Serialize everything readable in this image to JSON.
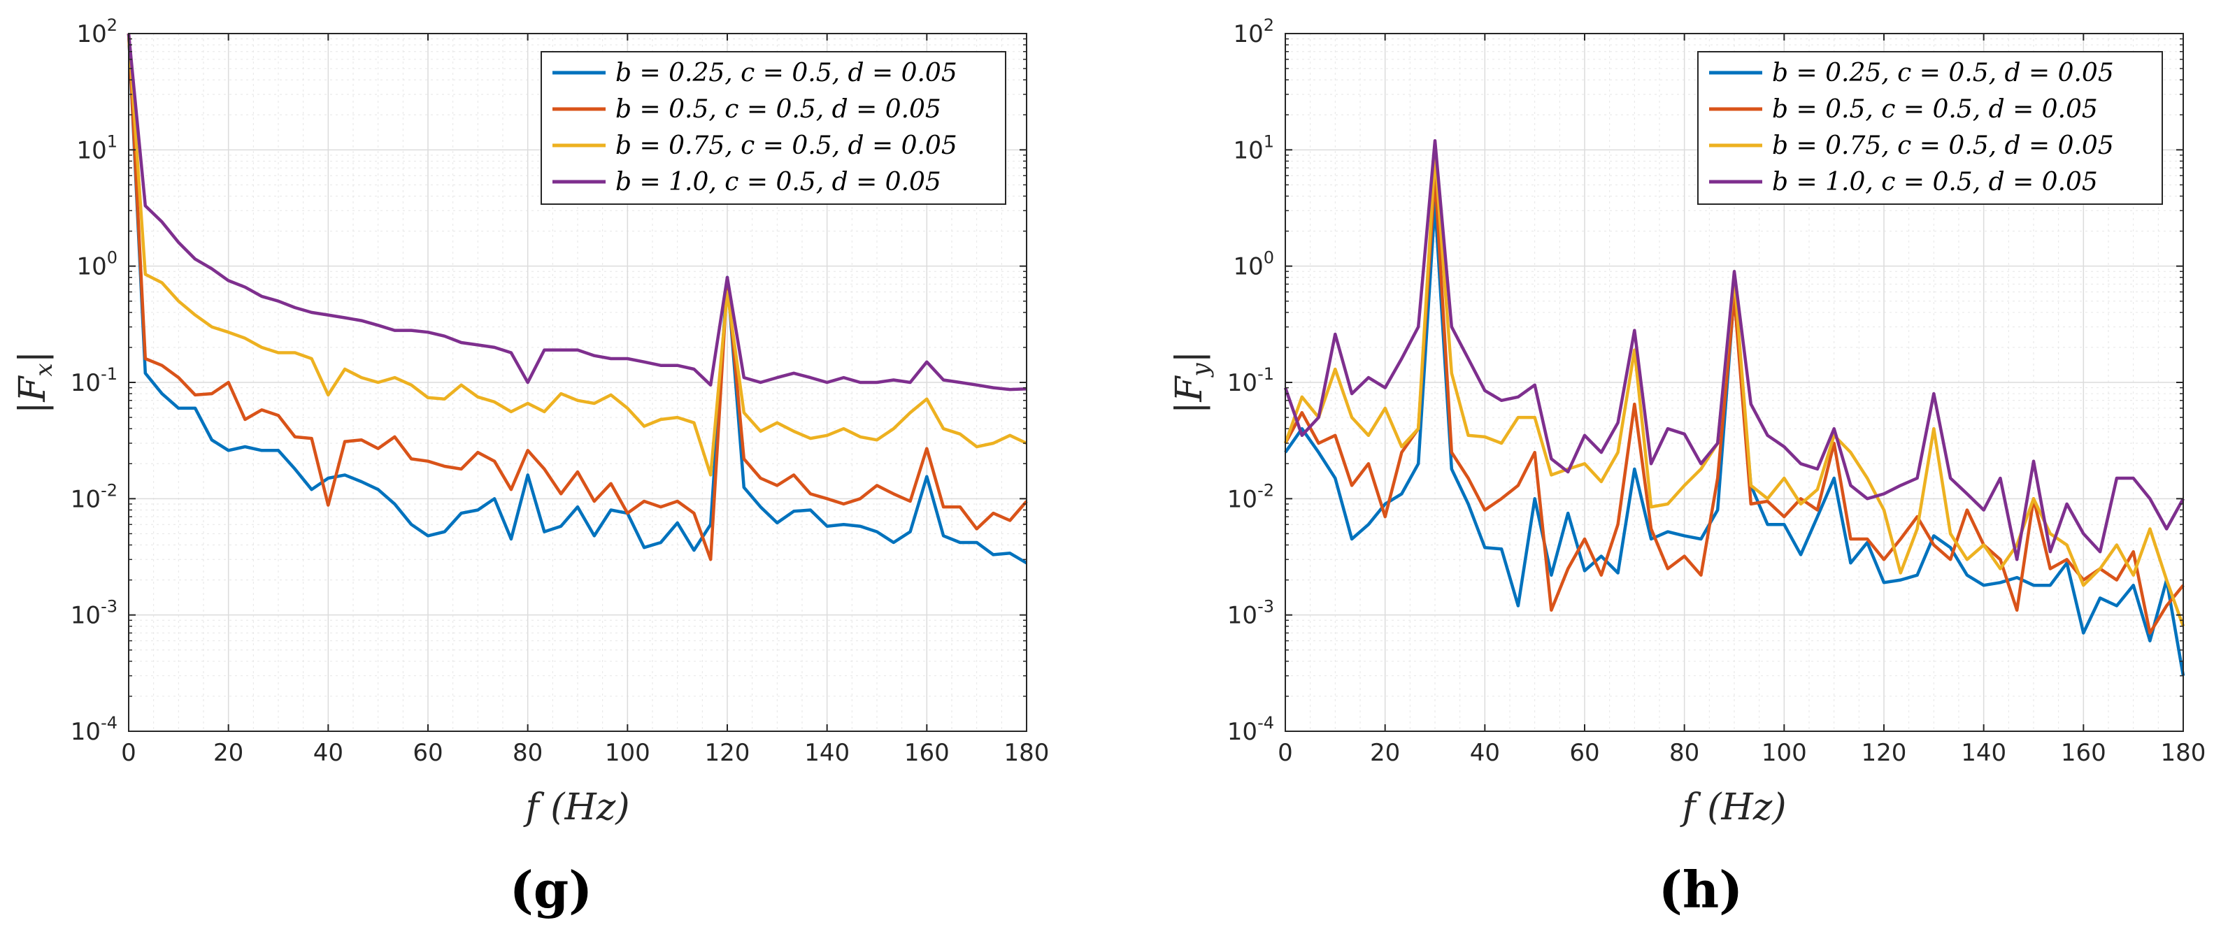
{
  "chart_data": [
    {
      "type": "line",
      "yscale": "log",
      "panel_label": "(g)",
      "title": "",
      "xlabel": "f (Hz)",
      "ylabel": "|Fx|",
      "ylabel_main": "|F",
      "ylabel_sub": "x",
      "ylabel_end": "|",
      "xlim": [
        0,
        180
      ],
      "ylim": [
        0.0001,
        100
      ],
      "xticks": [
        0,
        20,
        40,
        60,
        80,
        100,
        120,
        140,
        160,
        180
      ],
      "yticks": [
        "10-4",
        "10-3",
        "10-2",
        "10-1",
        "100",
        "101",
        "102"
      ],
      "grid": true,
      "legend_position": "top-right",
      "series": [
        {
          "name": "b = 0.25,  c = 0.5,  d = 0.05",
          "color": "#0072BD",
          "x": [
            0,
            3.33,
            6.67,
            10,
            13.33,
            16.67,
            20,
            23.33,
            26.67,
            30,
            33.33,
            36.67,
            40,
            43.33,
            46.67,
            50,
            53.33,
            56.67,
            60,
            63.33,
            66.67,
            70,
            73.33,
            76.67,
            80,
            83.33,
            86.67,
            90,
            93.33,
            96.67,
            100,
            103.33,
            106.67,
            110,
            113.33,
            116.67,
            120,
            123.33,
            126.67,
            130,
            133.33,
            136.67,
            140,
            143.33,
            146.67,
            150,
            153.33,
            156.67,
            160,
            163.33,
            166.67,
            170,
            173.33,
            176.67,
            180
          ],
          "y": [
            100,
            0.12,
            0.08,
            0.06,
            0.06,
            0.032,
            0.026,
            0.028,
            0.026,
            0.026,
            0.018,
            0.012,
            0.015,
            0.016,
            0.014,
            0.012,
            0.009,
            0.006,
            0.0048,
            0.0052,
            0.0075,
            0.008,
            0.01,
            0.0045,
            0.016,
            0.0052,
            0.0058,
            0.0085,
            0.0048,
            0.008,
            0.0075,
            0.0038,
            0.0042,
            0.0062,
            0.0036,
            0.006,
            0.8,
            0.0125,
            0.0085,
            0.0062,
            0.0078,
            0.008,
            0.0058,
            0.006,
            0.0058,
            0.0052,
            0.0042,
            0.0052,
            0.0155,
            0.0048,
            0.0042,
            0.0042,
            0.0033,
            0.0034,
            0.0028
          ]
        },
        {
          "name": "b = 0.5,  c = 0.5,  d = 0.05",
          "color": "#D95319",
          "x": [
            0,
            3.33,
            6.67,
            10,
            13.33,
            16.67,
            20,
            23.33,
            26.67,
            30,
            33.33,
            36.67,
            40,
            43.33,
            46.67,
            50,
            53.33,
            56.67,
            60,
            63.33,
            66.67,
            70,
            73.33,
            76.67,
            80,
            83.33,
            86.67,
            90,
            93.33,
            96.67,
            100,
            103.33,
            106.67,
            110,
            113.33,
            116.67,
            120,
            123.33,
            126.67,
            130,
            133.33,
            136.67,
            140,
            143.33,
            146.67,
            150,
            153.33,
            156.67,
            160,
            163.33,
            166.67,
            170,
            173.33,
            176.67,
            180
          ],
          "y": [
            100,
            0.16,
            0.14,
            0.11,
            0.078,
            0.08,
            0.1,
            0.048,
            0.058,
            0.052,
            0.034,
            0.033,
            0.0088,
            0.031,
            0.032,
            0.027,
            0.034,
            0.022,
            0.021,
            0.019,
            0.018,
            0.025,
            0.021,
            0.012,
            0.026,
            0.018,
            0.011,
            0.017,
            0.0095,
            0.0135,
            0.0075,
            0.0095,
            0.0085,
            0.0095,
            0.0075,
            0.003,
            0.75,
            0.022,
            0.015,
            0.013,
            0.016,
            0.011,
            0.01,
            0.009,
            0.01,
            0.013,
            0.011,
            0.0095,
            0.027,
            0.0085,
            0.0085,
            0.0055,
            0.0075,
            0.0065,
            0.0095
          ]
        },
        {
          "name": "b = 0.75,  c = 0.5,  d = 0.05",
          "color": "#EDB120",
          "x": [
            0,
            3.33,
            6.67,
            10,
            13.33,
            16.67,
            20,
            23.33,
            26.67,
            30,
            33.33,
            36.67,
            40,
            43.33,
            46.67,
            50,
            53.33,
            56.67,
            60,
            63.33,
            66.67,
            70,
            73.33,
            76.67,
            80,
            83.33,
            86.67,
            90,
            93.33,
            96.67,
            100,
            103.33,
            106.67,
            110,
            113.33,
            116.67,
            120,
            123.33,
            126.67,
            130,
            133.33,
            136.67,
            140,
            143.33,
            146.67,
            150,
            153.33,
            156.67,
            160,
            163.33,
            166.67,
            170,
            173.33,
            176.67,
            180
          ],
          "y": [
            100,
            0.85,
            0.72,
            0.5,
            0.38,
            0.3,
            0.27,
            0.24,
            0.2,
            0.18,
            0.18,
            0.16,
            0.078,
            0.13,
            0.11,
            0.1,
            0.11,
            0.095,
            0.074,
            0.072,
            0.095,
            0.075,
            0.068,
            0.056,
            0.066,
            0.056,
            0.08,
            0.07,
            0.066,
            0.078,
            0.06,
            0.042,
            0.048,
            0.05,
            0.045,
            0.016,
            0.6,
            0.055,
            0.038,
            0.045,
            0.038,
            0.033,
            0.035,
            0.04,
            0.034,
            0.032,
            0.04,
            0.055,
            0.072,
            0.04,
            0.036,
            0.028,
            0.03,
            0.035,
            0.03
          ]
        },
        {
          "name": "b = 1.0,  c = 0.5,  d = 0.05",
          "color": "#7E2F8E",
          "x": [
            0,
            3.33,
            6.67,
            10,
            13.33,
            16.67,
            20,
            23.33,
            26.67,
            30,
            33.33,
            36.67,
            40,
            43.33,
            46.67,
            50,
            53.33,
            56.67,
            60,
            63.33,
            66.67,
            70,
            73.33,
            76.67,
            80,
            83.33,
            86.67,
            90,
            93.33,
            96.67,
            100,
            103.33,
            106.67,
            110,
            113.33,
            116.67,
            120,
            123.33,
            126.67,
            130,
            133.33,
            136.67,
            140,
            143.33,
            146.67,
            150,
            153.33,
            156.67,
            160,
            163.33,
            166.67,
            170,
            173.33,
            176.67,
            180
          ],
          "y": [
            100,
            3.3,
            2.4,
            1.6,
            1.15,
            0.95,
            0.75,
            0.66,
            0.55,
            0.5,
            0.44,
            0.4,
            0.38,
            0.36,
            0.34,
            0.31,
            0.28,
            0.28,
            0.27,
            0.25,
            0.22,
            0.21,
            0.2,
            0.18,
            0.1,
            0.19,
            0.19,
            0.19,
            0.17,
            0.16,
            0.16,
            0.15,
            0.14,
            0.14,
            0.13,
            0.095,
            0.8,
            0.11,
            0.1,
            0.11,
            0.12,
            0.11,
            0.1,
            0.11,
            0.1,
            0.1,
            0.105,
            0.1,
            0.15,
            0.105,
            0.1,
            0.095,
            0.09,
            0.087,
            0.088
          ]
        }
      ]
    },
    {
      "type": "line",
      "yscale": "log",
      "panel_label": "(h)",
      "title": "",
      "xlabel": "f (Hz)",
      "ylabel": "|Fy|",
      "ylabel_main": "|F",
      "ylabel_sub": "y",
      "ylabel_end": "|",
      "xlim": [
        0,
        180
      ],
      "ylim": [
        0.0001,
        100
      ],
      "xticks": [
        0,
        20,
        40,
        60,
        80,
        100,
        120,
        140,
        160,
        180
      ],
      "yticks": [
        "10-4",
        "10-3",
        "10-2",
        "10-1",
        "100",
        "101",
        "102"
      ],
      "grid": true,
      "legend_position": "top-right",
      "series": [
        {
          "name": "b = 0.25,  c = 0.5,  d = 0.05",
          "color": "#0072BD",
          "x": [
            0,
            3.33,
            6.67,
            10,
            13.33,
            16.67,
            20,
            23.33,
            26.67,
            30,
            33.33,
            36.67,
            40,
            43.33,
            46.67,
            50,
            53.33,
            56.67,
            60,
            63.33,
            66.67,
            70,
            73.33,
            76.67,
            80,
            83.33,
            86.67,
            90,
            93.33,
            96.67,
            100,
            103.33,
            106.67,
            110,
            113.33,
            116.67,
            120,
            123.33,
            126.67,
            130,
            133.33,
            136.67,
            140,
            143.33,
            146.67,
            150,
            153.33,
            156.67,
            160,
            163.33,
            166.67,
            170,
            173.33,
            176.67,
            180
          ],
          "y": [
            0.025,
            0.04,
            0.025,
            0.015,
            0.0045,
            0.006,
            0.009,
            0.011,
            0.02,
            3.5,
            0.018,
            0.009,
            0.0038,
            0.0037,
            0.0012,
            0.01,
            0.0022,
            0.0075,
            0.0024,
            0.0032,
            0.0023,
            0.018,
            0.0045,
            0.0052,
            0.0048,
            0.0045,
            0.008,
            0.6,
            0.013,
            0.006,
            0.006,
            0.0033,
            0.007,
            0.015,
            0.0028,
            0.0042,
            0.0019,
            0.002,
            0.0022,
            0.0048,
            0.0038,
            0.0022,
            0.0018,
            0.0019,
            0.0021,
            0.0018,
            0.0018,
            0.0028,
            0.0007,
            0.0014,
            0.0012,
            0.0018,
            0.0006,
            0.002,
            0.0003
          ]
        },
        {
          "name": "b = 0.5,  c = 0.5,  d = 0.05",
          "color": "#D95319",
          "x": [
            0,
            3.33,
            6.67,
            10,
            13.33,
            16.67,
            20,
            23.33,
            26.67,
            30,
            33.33,
            36.67,
            40,
            43.33,
            46.67,
            50,
            53.33,
            56.67,
            60,
            63.33,
            66.67,
            70,
            73.33,
            76.67,
            80,
            83.33,
            86.67,
            90,
            93.33,
            96.67,
            100,
            103.33,
            106.67,
            110,
            113.33,
            116.67,
            120,
            123.33,
            126.67,
            130,
            133.33,
            136.67,
            140,
            143.33,
            146.67,
            150,
            153.33,
            156.67,
            160,
            163.33,
            166.67,
            170,
            173.33,
            176.67,
            180
          ],
          "y": [
            0.03,
            0.055,
            0.03,
            0.035,
            0.013,
            0.02,
            0.007,
            0.025,
            0.04,
            6.0,
            0.025,
            0.015,
            0.008,
            0.01,
            0.013,
            0.025,
            0.0011,
            0.0025,
            0.0045,
            0.0022,
            0.006,
            0.065,
            0.0055,
            0.0025,
            0.0032,
            0.0022,
            0.015,
            0.55,
            0.009,
            0.0095,
            0.007,
            0.01,
            0.008,
            0.03,
            0.0045,
            0.0045,
            0.003,
            0.0045,
            0.007,
            0.004,
            0.003,
            0.008,
            0.004,
            0.003,
            0.0011,
            0.01,
            0.0025,
            0.003,
            0.002,
            0.0025,
            0.002,
            0.0035,
            0.0007,
            0.0012,
            0.0018
          ]
        },
        {
          "name": "b = 0.75,  c = 0.5,  d = 0.05",
          "color": "#EDB120",
          "x": [
            0,
            3.33,
            6.67,
            10,
            13.33,
            16.67,
            20,
            23.33,
            26.67,
            30,
            33.33,
            36.67,
            40,
            43.33,
            46.67,
            50,
            53.33,
            56.67,
            60,
            63.33,
            66.67,
            70,
            73.33,
            76.67,
            80,
            83.33,
            86.67,
            90,
            93.33,
            96.67,
            100,
            103.33,
            106.67,
            110,
            113.33,
            116.67,
            120,
            123.33,
            126.67,
            130,
            133.33,
            136.67,
            140,
            143.33,
            146.67,
            150,
            153.33,
            156.67,
            160,
            163.33,
            166.67,
            170,
            173.33,
            176.67,
            180
          ],
          "y": [
            0.03,
            0.075,
            0.05,
            0.13,
            0.05,
            0.035,
            0.06,
            0.028,
            0.04,
            9.0,
            0.12,
            0.035,
            0.034,
            0.03,
            0.05,
            0.05,
            0.016,
            0.018,
            0.02,
            0.014,
            0.025,
            0.19,
            0.0085,
            0.009,
            0.013,
            0.018,
            0.03,
            0.8,
            0.013,
            0.01,
            0.015,
            0.009,
            0.012,
            0.035,
            0.025,
            0.015,
            0.008,
            0.0023,
            0.0055,
            0.04,
            0.005,
            0.003,
            0.004,
            0.0025,
            0.004,
            0.01,
            0.005,
            0.004,
            0.0018,
            0.0025,
            0.004,
            0.0022,
            0.0055,
            0.002,
            0.0008
          ]
        },
        {
          "name": "b = 1.0,  c = 0.5,  d = 0.05",
          "color": "#7E2F8E",
          "x": [
            0,
            3.33,
            6.67,
            10,
            13.33,
            16.67,
            20,
            23.33,
            26.67,
            30,
            33.33,
            36.67,
            40,
            43.33,
            46.67,
            50,
            53.33,
            56.67,
            60,
            63.33,
            66.67,
            70,
            73.33,
            76.67,
            80,
            83.33,
            86.67,
            90,
            93.33,
            96.67,
            100,
            103.33,
            106.67,
            110,
            113.33,
            116.67,
            120,
            123.33,
            126.67,
            130,
            133.33,
            136.67,
            140,
            143.33,
            146.67,
            150,
            153.33,
            156.67,
            160,
            163.33,
            166.67,
            170,
            173.33,
            176.67,
            180
          ],
          "y": [
            0.09,
            0.035,
            0.05,
            0.26,
            0.08,
            0.11,
            0.09,
            0.16,
            0.3,
            12.0,
            0.3,
            0.16,
            0.085,
            0.07,
            0.075,
            0.095,
            0.022,
            0.017,
            0.035,
            0.025,
            0.045,
            0.28,
            0.02,
            0.04,
            0.036,
            0.02,
            0.03,
            0.9,
            0.065,
            0.035,
            0.028,
            0.02,
            0.018,
            0.04,
            0.013,
            0.01,
            0.011,
            0.013,
            0.015,
            0.08,
            0.015,
            0.011,
            0.008,
            0.015,
            0.003,
            0.021,
            0.0035,
            0.009,
            0.005,
            0.0035,
            0.015,
            0.015,
            0.01,
            0.0055,
            0.01
          ]
        }
      ]
    }
  ]
}
